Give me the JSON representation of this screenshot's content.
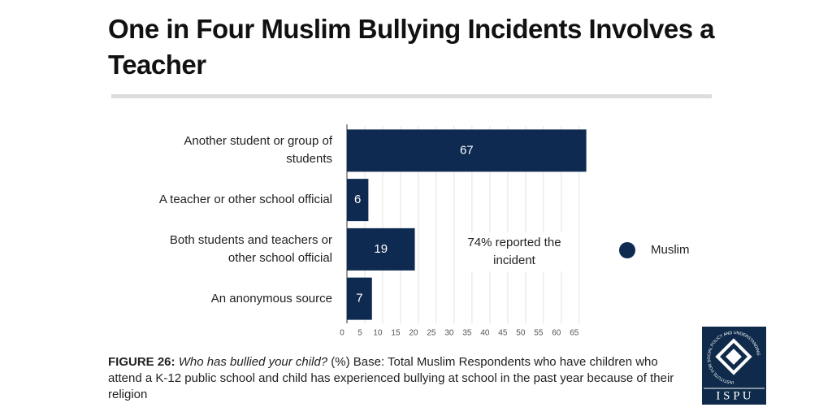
{
  "chart_data": {
    "type": "bar",
    "orientation": "horizontal",
    "title": "One in Four Muslim Bullying Incidents Involves a Teacher",
    "categories": [
      "Another student or group of students",
      "A teacher or other school official",
      "Both students and teachers or other school official",
      "An anonymous source"
    ],
    "series": [
      {
        "name": "Muslim",
        "color": "#0e2a50",
        "values": [
          67,
          6,
          19,
          7
        ]
      }
    ],
    "xlim": [
      0,
      68
    ],
    "xticks": [
      0,
      5,
      10,
      15,
      20,
      25,
      30,
      35,
      40,
      45,
      50,
      55,
      60,
      65
    ],
    "grid": true,
    "legend": "right",
    "annotation": "74% reported the incident"
  },
  "caption": {
    "label": "FIGURE 26:",
    "question": "Who has bullied your child?",
    "text": "(%) Base: Total Muslim Respondents who have children who attend a K-12 public school and child has experienced bullying at school in the past year because of their religion"
  },
  "logo": {
    "name": "I S P U",
    "circle_text": "INSTITUTE FOR SOCIAL POLICY AND UNDERSTANDING"
  }
}
